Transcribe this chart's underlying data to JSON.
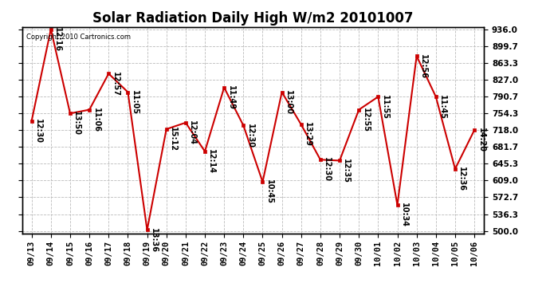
{
  "title": "Solar Radiation Daily High W/m2 20101007",
  "copyright_text": "Copyright 2010 Cartronics.com",
  "dates": [
    "09/13",
    "09/14",
    "09/15",
    "09/16",
    "09/17",
    "09/18",
    "09/19",
    "09/20",
    "09/21",
    "09/22",
    "09/23",
    "09/24",
    "09/25",
    "09/26",
    "09/27",
    "09/28",
    "09/29",
    "09/30",
    "10/01",
    "10/02",
    "10/03",
    "10/04",
    "10/05",
    "10/06"
  ],
  "values": [
    738,
    936,
    754,
    762,
    840,
    800,
    502,
    720,
    734,
    672,
    810,
    728,
    606,
    800,
    730,
    654,
    652,
    762,
    790,
    556,
    878,
    790,
    634,
    718
  ],
  "labels": [
    "12:30",
    "12:16",
    "13:50",
    "11:06",
    "12:57",
    "11:05",
    "13:36",
    "15:12",
    "12:04",
    "12:14",
    "11:49",
    "12:30",
    "10:45",
    "13:00",
    "13:29",
    "12:30",
    "12:35",
    "12:55",
    "11:55",
    "10:34",
    "12:56",
    "11:45",
    "12:36",
    "14:20"
  ],
  "yticks": [
    500.0,
    536.3,
    572.7,
    609.0,
    645.3,
    681.7,
    718.0,
    754.3,
    790.7,
    827.0,
    863.3,
    899.7,
    936.0
  ],
  "ymin": 500.0,
  "ymax": 936.0,
  "line_color": "#cc0000",
  "marker_color": "#cc0000",
  "bg_color": "#ffffff",
  "grid_color": "#bbbbbb",
  "title_fontsize": 12,
  "label_fontsize": 7,
  "tick_fontsize": 7.5,
  "copyright_fontsize": 6
}
